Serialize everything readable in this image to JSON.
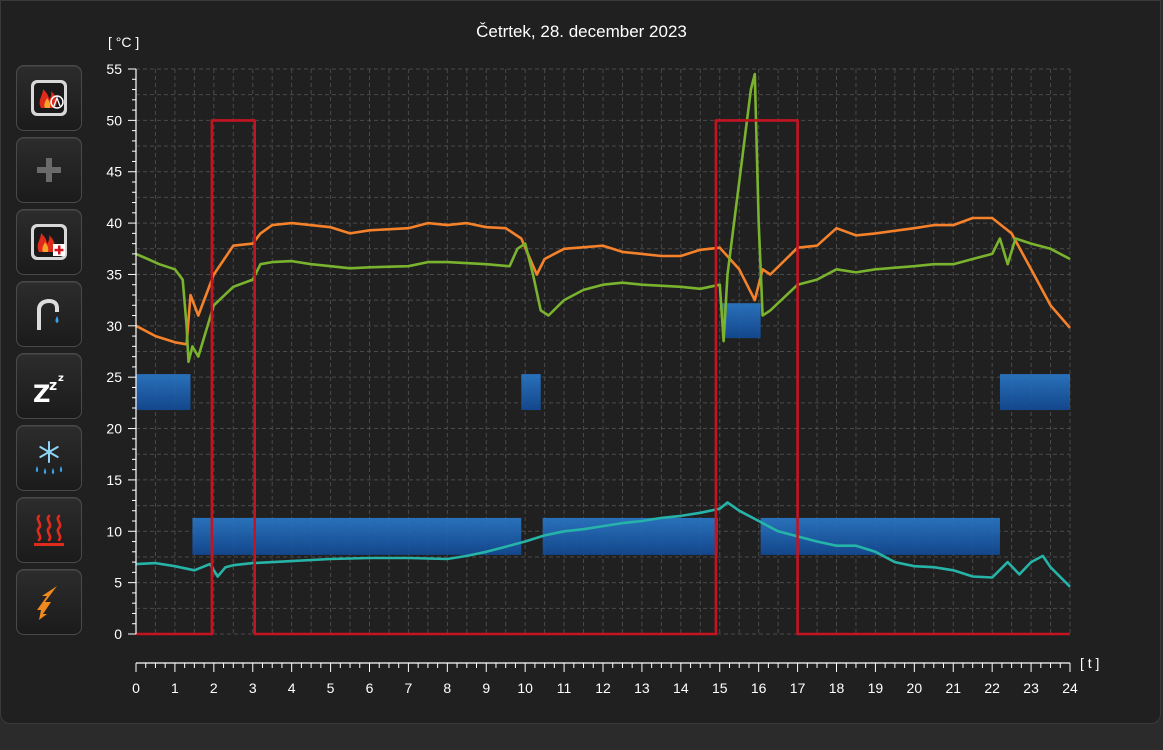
{
  "sidebar": {
    "buttons": [
      {
        "icon": "burner-flame-icon"
      },
      {
        "icon": "plus-icon"
      },
      {
        "icon": "burner-add-icon"
      },
      {
        "icon": "water-tap-icon"
      },
      {
        "icon": "sleep-zzz-icon"
      },
      {
        "icon": "snow-drops-icon"
      },
      {
        "icon": "heating-waves-icon"
      },
      {
        "icon": "electric-lightning-icon"
      }
    ]
  },
  "colors": {
    "orange": "#f5822a",
    "green": "#7ab32d",
    "teal": "#26b3a8",
    "red": "#c41422",
    "blue": "#1f6fc2"
  },
  "chart_data": {
    "type": "line",
    "title": "Četrtek, 28. december 2023",
    "ylabel": "[ °C ]",
    "xlabel": "[ t ]",
    "xlim": [
      0,
      24
    ],
    "ylim": [
      0,
      55
    ],
    "xticks": [
      0,
      1,
      2,
      3,
      4,
      5,
      6,
      7,
      8,
      9,
      10,
      11,
      12,
      13,
      14,
      15,
      16,
      17,
      18,
      19,
      20,
      21,
      22,
      23,
      24
    ],
    "yticks": [
      0,
      5,
      10,
      15,
      20,
      25,
      30,
      35,
      40,
      45,
      50,
      55
    ],
    "grid": true,
    "series": [
      {
        "color": "#f5822a",
        "x": [
          0,
          0.5,
          1.0,
          1.3,
          1.4,
          1.6,
          2.0,
          2.5,
          3.0,
          3.2,
          3.5,
          4.0,
          5.0,
          5.5,
          6.0,
          7.0,
          7.5,
          8.0,
          8.5,
          9.0,
          9.5,
          9.9,
          10.3,
          10.5,
          11.0,
          12.0,
          12.5,
          13.0,
          13.5,
          14.0,
          14.5,
          15.0,
          15.5,
          15.9,
          16.1,
          16.3,
          17.0,
          17.5,
          18.0,
          18.5,
          19.0,
          20.0,
          20.5,
          21.0,
          21.5,
          22.0,
          22.5,
          23.0,
          23.5,
          24.0
        ],
        "y": [
          30.0,
          29.0,
          28.4,
          28.2,
          33.0,
          31.0,
          35.0,
          37.8,
          38.0,
          39.0,
          39.8,
          40.0,
          39.6,
          39.0,
          39.3,
          39.5,
          40.0,
          39.8,
          40.0,
          39.6,
          39.5,
          38.5,
          35.0,
          36.5,
          37.5,
          37.8,
          37.2,
          37.0,
          36.8,
          36.8,
          37.4,
          37.6,
          35.5,
          32.5,
          35.5,
          35.0,
          37.6,
          37.8,
          39.5,
          38.8,
          39.0,
          39.5,
          39.8,
          39.8,
          40.5,
          40.5,
          39.0,
          35.5,
          32.0,
          29.8
        ]
      },
      {
        "color": "#7ab32d",
        "x": [
          0,
          0.3,
          0.6,
          1.0,
          1.2,
          1.3,
          1.35,
          1.45,
          1.6,
          2.0,
          2.5,
          3.0,
          3.2,
          3.5,
          4.0,
          4.5,
          5.0,
          5.5,
          6.0,
          7.0,
          7.5,
          8.0,
          9.0,
          9.6,
          9.8,
          10.0,
          10.2,
          10.4,
          10.6,
          11.0,
          11.5,
          12.0,
          12.5,
          13.0,
          14.0,
          14.5,
          15.0,
          15.1,
          15.2,
          15.5,
          15.8,
          15.9,
          16.0,
          16.1,
          16.3,
          17.0,
          17.5,
          18.0,
          18.5,
          19.0,
          20.0,
          20.5,
          21.0,
          21.5,
          22.0,
          22.2,
          22.4,
          22.6,
          23.0,
          23.5,
          24.0
        ],
        "y": [
          37.0,
          36.5,
          36.0,
          35.5,
          34.5,
          30.0,
          26.5,
          28.0,
          27.0,
          32.0,
          33.8,
          34.5,
          36.0,
          36.2,
          36.3,
          36.0,
          35.8,
          35.6,
          35.7,
          35.8,
          36.2,
          36.2,
          36.0,
          35.8,
          37.5,
          38.0,
          35.0,
          31.5,
          31.0,
          32.5,
          33.5,
          34.0,
          34.2,
          34.0,
          33.8,
          33.6,
          34.0,
          28.5,
          35.0,
          44.0,
          53.0,
          54.5,
          40.0,
          31.0,
          31.5,
          34.0,
          34.5,
          35.5,
          35.2,
          35.5,
          35.8,
          36.0,
          36.0,
          36.5,
          37.0,
          38.5,
          36.0,
          38.5,
          38.0,
          37.5,
          36.5
        ]
      },
      {
        "color": "#26b3a8",
        "x": [
          0,
          0.5,
          1.0,
          1.5,
          1.9,
          2.1,
          2.3,
          2.5,
          3.0,
          4.0,
          5.0,
          6.0,
          7.0,
          8.0,
          8.5,
          9.0,
          9.5,
          10.0,
          10.5,
          11.0,
          11.5,
          12.0,
          12.5,
          13.0,
          13.5,
          14.0,
          14.5,
          15.0,
          15.2,
          15.5,
          16.0,
          16.5,
          17.0,
          17.5,
          18.0,
          18.5,
          19.0,
          19.5,
          20.0,
          20.5,
          21.0,
          21.5,
          22.0,
          22.4,
          22.7,
          23.0,
          23.3,
          23.5,
          24.0
        ],
        "y": [
          6.8,
          6.9,
          6.6,
          6.2,
          6.8,
          5.6,
          6.5,
          6.7,
          6.9,
          7.1,
          7.3,
          7.4,
          7.4,
          7.3,
          7.6,
          8.0,
          8.5,
          9.0,
          9.6,
          10.0,
          10.2,
          10.5,
          10.8,
          11.0,
          11.3,
          11.5,
          11.8,
          12.2,
          12.8,
          12.0,
          11.0,
          10.0,
          9.5,
          9.0,
          8.6,
          8.6,
          8.0,
          7.0,
          6.6,
          6.5,
          6.2,
          5.6,
          5.5,
          7.0,
          5.8,
          7.0,
          7.6,
          6.5,
          4.6
        ]
      },
      {
        "color": "#c41422",
        "x": [
          0,
          1.95,
          1.95,
          3.05,
          3.05,
          14.9,
          14.9,
          17.0,
          17.0,
          24.0
        ],
        "y": [
          0,
          0,
          50,
          50,
          0,
          0,
          50,
          50,
          0,
          0
        ]
      }
    ],
    "bars": [
      {
        "x0": 0.0,
        "x1": 1.4,
        "y0": 21.8,
        "y1": 25.3
      },
      {
        "x0": 9.9,
        "x1": 10.4,
        "y0": 21.8,
        "y1": 25.3
      },
      {
        "x0": 22.2,
        "x1": 24.0,
        "y0": 21.8,
        "y1": 25.3
      },
      {
        "x0": 1.45,
        "x1": 9.9,
        "y0": 7.7,
        "y1": 11.3
      },
      {
        "x0": 10.45,
        "x1": 14.95,
        "y0": 7.7,
        "y1": 11.3
      },
      {
        "x0": 16.05,
        "x1": 22.2,
        "y0": 7.7,
        "y1": 11.3
      },
      {
        "x0": 15.05,
        "x1": 16.05,
        "y0": 28.8,
        "y1": 32.2
      }
    ]
  }
}
